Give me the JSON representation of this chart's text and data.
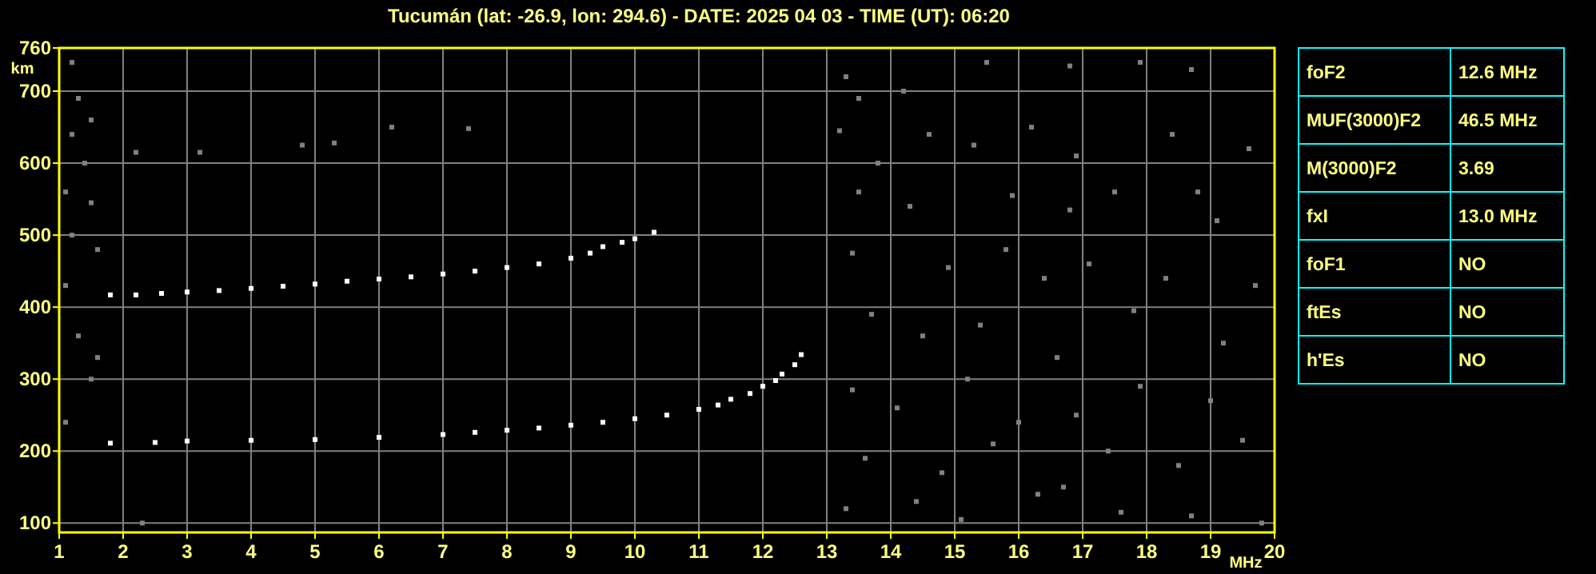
{
  "chart_data": [
    {
      "type": "scatter",
      "title": "Tucumán (lat: -26.9, lon: 294.6) - DATE: 2025 04 03 - TIME (UT): 06:20",
      "xlabel": "MHz",
      "ylabel": "km",
      "xlim": [
        1,
        20
      ],
      "ylim": [
        87,
        760
      ],
      "xticks": [
        1,
        2,
        3,
        4,
        5,
        6,
        7,
        8,
        9,
        10,
        11,
        12,
        13,
        14,
        15,
        16,
        17,
        18,
        19,
        20
      ],
      "yticks": [
        100,
        200,
        300,
        400,
        500,
        600,
        700,
        760
      ],
      "grid": true,
      "marker": "square",
      "series": [
        {
          "color": "#ffffff",
          "x": [
            1.8,
            2.5,
            3,
            4,
            5,
            6,
            7,
            7.5,
            8,
            8.5,
            9,
            9.5,
            10,
            10.5,
            11,
            11.3,
            11.5,
            11.8,
            12,
            12.2,
            12.3,
            12.5,
            12.6
          ],
          "values": [
            211,
            212,
            214,
            215,
            216,
            219,
            223,
            226,
            229,
            232,
            236,
            240,
            245,
            250,
            258,
            264,
            272,
            280,
            290,
            298,
            307,
            320,
            334
          ]
        },
        {
          "color": "#ffffff",
          "x": [
            1.8,
            2.2,
            2.6,
            3,
            3.5,
            4,
            4.5,
            5,
            5.5,
            6,
            6.5,
            7,
            7.5,
            8,
            8.5,
            9,
            9.3,
            9.5,
            9.8,
            10,
            10.3
          ],
          "values": [
            417,
            417,
            419,
            421,
            423,
            426,
            429,
            432,
            436,
            439,
            442,
            446,
            450,
            455,
            460,
            468,
            475,
            484,
            490,
            495,
            504
          ]
        },
        {
          "color": "#808080",
          "x": [
            13.3,
            13.5,
            14.2,
            15.5,
            16.8,
            17.9,
            18.7,
            13.2,
            13.8,
            14.6,
            15.3,
            16.2,
            16.9,
            18.4,
            19.6,
            13.5,
            14.3,
            15.9,
            16.8,
            17.5,
            18.8,
            19.1,
            13.4,
            14.9,
            15.8,
            16.4,
            17.1,
            18.3,
            19.7,
            13.7,
            14.5,
            15.4,
            16.6,
            17.8,
            19.2,
            13.4,
            14.1,
            15.2,
            16,
            16.9,
            17.9,
            19,
            13.6,
            14.8,
            15.6,
            16.7,
            17.4,
            18.5,
            19.5,
            13.3,
            14.4,
            15.1,
            16.3,
            17.6,
            18.7,
            19.8,
            1.2,
            1.3,
            1.5,
            1.2,
            1.4,
            2.2,
            3.2,
            4.8,
            5.3,
            6.2,
            7.4,
            1.1,
            1.5,
            1.2,
            1.6,
            1.1,
            1.3,
            1.6,
            1.5,
            1.1,
            2.3
          ],
          "values": [
            720,
            690,
            700,
            740,
            735,
            740,
            730,
            645,
            600,
            640,
            625,
            650,
            610,
            640,
            620,
            560,
            540,
            555,
            535,
            560,
            560,
            520,
            475,
            455,
            480,
            440,
            460,
            440,
            430,
            390,
            360,
            375,
            330,
            395,
            350,
            285,
            260,
            300,
            240,
            250,
            290,
            270,
            190,
            170,
            210,
            150,
            200,
            180,
            215,
            120,
            130,
            105,
            140,
            115,
            110,
            100,
            740,
            690,
            660,
            640,
            600,
            615,
            615,
            625,
            628,
            650,
            648,
            560,
            545,
            500,
            480,
            430,
            360,
            330,
            300,
            240,
            100
          ]
        }
      ]
    },
    {
      "type": "other",
      "categories": [
        "foF2",
        "MUF(3000)F2",
        "M(3000)F2",
        "fxI",
        "foF1",
        "ftEs",
        "h'Es"
      ],
      "value_labels": [
        "12.6 MHz",
        "46.5 MHz",
        "3.69",
        "13.0 MHz",
        "NO",
        "NO",
        "NO"
      ]
    }
  ]
}
